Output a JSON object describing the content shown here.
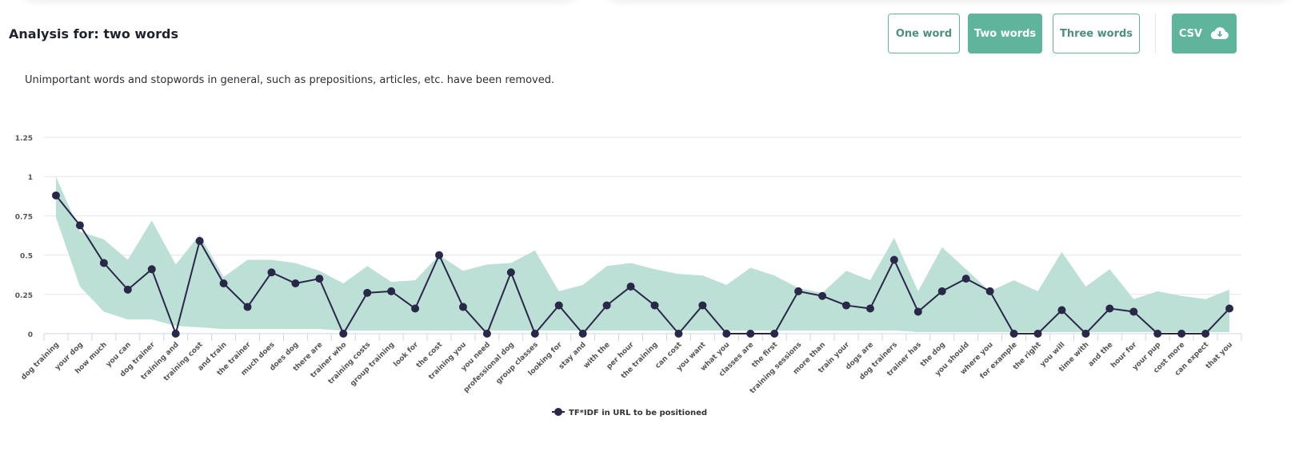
{
  "header": {
    "title": "Analysis for: two words",
    "subtitle": "Unimportant words and stopwords in general, such as prepositions, articles, etc. have been removed."
  },
  "buttons": {
    "one_word": "One word",
    "two_words": "Two words",
    "three_words": "Three words",
    "csv": "CSV",
    "csv_icon": "cloud-download-icon",
    "active": "two_words"
  },
  "colors": {
    "accent": "#5fb49c",
    "area": "#bcdfd6",
    "line": "#2a2848"
  },
  "chart_data": {
    "type": "line",
    "ylim": [
      0,
      1.25
    ],
    "yticks": [
      "0",
      "0.25",
      "0.5",
      "0.75",
      "1",
      "1.25"
    ],
    "grid": true,
    "legend_position": "bottom",
    "categories": [
      "dog training",
      "your dog",
      "how much",
      "you can",
      "dog trainer",
      "training and",
      "training cost",
      "and train",
      "the trainer",
      "much does",
      "does dog",
      "there are",
      "trainer who",
      "training costs",
      "group training",
      "look for",
      "the cost",
      "training you",
      "you need",
      "professional dog",
      "group classes",
      "looking for",
      "stay and",
      "with the",
      "per hour",
      "the training",
      "can cost",
      "you want",
      "what you",
      "classes are",
      "the first",
      "training sessions",
      "more than",
      "train your",
      "dogs are",
      "dog trainers",
      "trainer has",
      "the dog",
      "you should",
      "where you",
      "for example",
      "the right",
      "you will",
      "time with",
      "and the",
      "hour for",
      "your pup",
      "cost more",
      "can expect",
      "that you"
    ],
    "series": [
      {
        "name": "TF*IDF in URL to be positioned",
        "type": "line",
        "values": [
          0.88,
          0.69,
          0.45,
          0.28,
          0.41,
          0,
          0.59,
          0.32,
          0.17,
          0.39,
          0.32,
          0.35,
          0,
          0.26,
          0.27,
          0.16,
          0.5,
          0.17,
          0,
          0.39,
          0,
          0.18,
          0,
          0.18,
          0.3,
          0.18,
          0,
          0.18,
          0,
          0,
          0,
          0.27,
          0.24,
          0.18,
          0.16,
          0.47,
          0.14,
          0.27,
          0.35,
          0.27,
          0,
          0,
          0.15,
          0,
          0.16,
          0.14,
          0,
          0,
          0,
          0.16
        ]
      },
      {
        "type": "arearange",
        "high": [
          1.0,
          0.65,
          0.6,
          0.47,
          0.72,
          0.44,
          0.63,
          0.36,
          0.47,
          0.47,
          0.45,
          0.4,
          0.32,
          0.43,
          0.33,
          0.34,
          0.5,
          0.4,
          0.44,
          0.45,
          0.53,
          0.27,
          0.31,
          0.43,
          0.45,
          0.41,
          0.38,
          0.37,
          0.31,
          0.42,
          0.37,
          0.29,
          0.26,
          0.4,
          0.34,
          0.61,
          0.27,
          0.55,
          0.41,
          0.27,
          0.34,
          0.27,
          0.52,
          0.3,
          0.41,
          0.22,
          0.27,
          0.24,
          0.22,
          0.28
        ],
        "low": [
          0.74,
          0.3,
          0.14,
          0.09,
          0.09,
          0.05,
          0.04,
          0.03,
          0.03,
          0.03,
          0.03,
          0.03,
          0.02,
          0.02,
          0.02,
          0.02,
          0.02,
          0.02,
          0.02,
          0.02,
          0.02,
          0.02,
          0.02,
          0.02,
          0.02,
          0.02,
          0.02,
          0.02,
          0.02,
          0.02,
          0.02,
          0.02,
          0.02,
          0.02,
          0.02,
          0.02,
          0.01,
          0.01,
          0.01,
          0.01,
          0.01,
          0.01,
          0.01,
          0.01,
          0.01,
          0.01,
          0.01,
          0.01,
          0.01,
          0.01
        ]
      }
    ]
  }
}
